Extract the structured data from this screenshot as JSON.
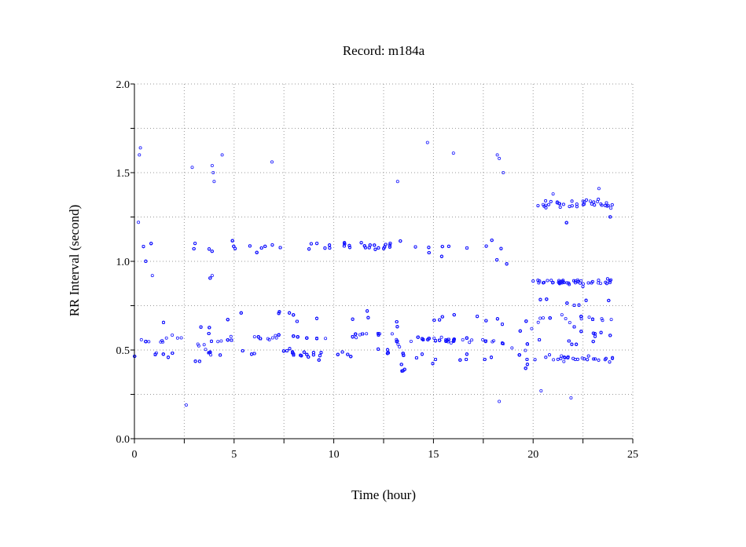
{
  "chart_data": {
    "type": "scatter",
    "title": "Record:  m184a",
    "xlabel": "Time (hour)",
    "ylabel": "RR Interval (second)",
    "xlim": [
      0,
      25
    ],
    "ylim": [
      0.0,
      2.0
    ],
    "x_ticks": [
      "0",
      "5",
      "10",
      "15",
      "20",
      "25"
    ],
    "y_ticks": [
      "0.0",
      "0.5",
      "1.0",
      "1.5",
      "2.0"
    ],
    "grid": true,
    "marker_color": "#1a1aff",
    "series": [
      {
        "values_main_band": [
          [
            0.0,
            0.55
          ],
          [
            0.5,
            0.55
          ],
          [
            0.9,
            0.53
          ],
          [
            1.0,
            0.45
          ],
          [
            1.3,
            0.55
          ],
          [
            2.0,
            0.57
          ],
          [
            2.5,
            0.55
          ],
          [
            3.0,
            0.54
          ],
          [
            3.5,
            0.53
          ],
          [
            3.9,
            0.46
          ],
          [
            4.2,
            0.55
          ],
          [
            5.0,
            0.57
          ],
          [
            6.0,
            0.58
          ],
          [
            6.8,
            0.55
          ],
          [
            7.5,
            0.6
          ],
          [
            8.5,
            0.56
          ],
          [
            9.5,
            0.57
          ],
          [
            10.5,
            0.58
          ],
          [
            11.5,
            0.58
          ],
          [
            12.5,
            0.59
          ],
          [
            13.0,
            0.58
          ],
          [
            13.5,
            0.47
          ],
          [
            14.0,
            0.56
          ],
          [
            15.0,
            0.56
          ],
          [
            16.0,
            0.55
          ],
          [
            17.0,
            0.55
          ],
          [
            18.0,
            0.55
          ],
          [
            18.8,
            0.53
          ],
          [
            19.3,
            0.47
          ],
          [
            19.6,
            0.49
          ],
          [
            20.0,
            0.64
          ],
          [
            20.5,
            0.68
          ],
          [
            21.5,
            0.69
          ],
          [
            22.0,
            0.62
          ],
          [
            22.5,
            0.68
          ],
          [
            24.0,
            0.67
          ]
        ],
        "values_outliers": [
          [
            0.2,
            1.22
          ],
          [
            0.25,
            1.6
          ],
          [
            0.3,
            1.64
          ],
          [
            2.9,
            1.53
          ],
          [
            3.9,
            1.54
          ],
          [
            3.95,
            1.5
          ],
          [
            4.0,
            1.45
          ],
          [
            4.4,
            1.6
          ],
          [
            6.9,
            1.56
          ],
          [
            13.2,
            1.45
          ],
          [
            14.7,
            1.67
          ],
          [
            16.0,
            1.61
          ],
          [
            18.2,
            1.6
          ],
          [
            18.3,
            1.58
          ],
          [
            18.5,
            1.5
          ],
          [
            2.6,
            0.19
          ],
          [
            20.4,
            0.27
          ],
          [
            21.9,
            0.23
          ],
          [
            18.3,
            0.21
          ],
          [
            0.9,
            0.92
          ],
          [
            3.9,
            0.92
          ],
          [
            20.5,
            1.32
          ],
          [
            21.0,
            1.38
          ],
          [
            22.5,
            1.34
          ],
          [
            23.3,
            1.41
          ],
          [
            23.9,
            1.3
          ]
        ]
      }
    ]
  }
}
